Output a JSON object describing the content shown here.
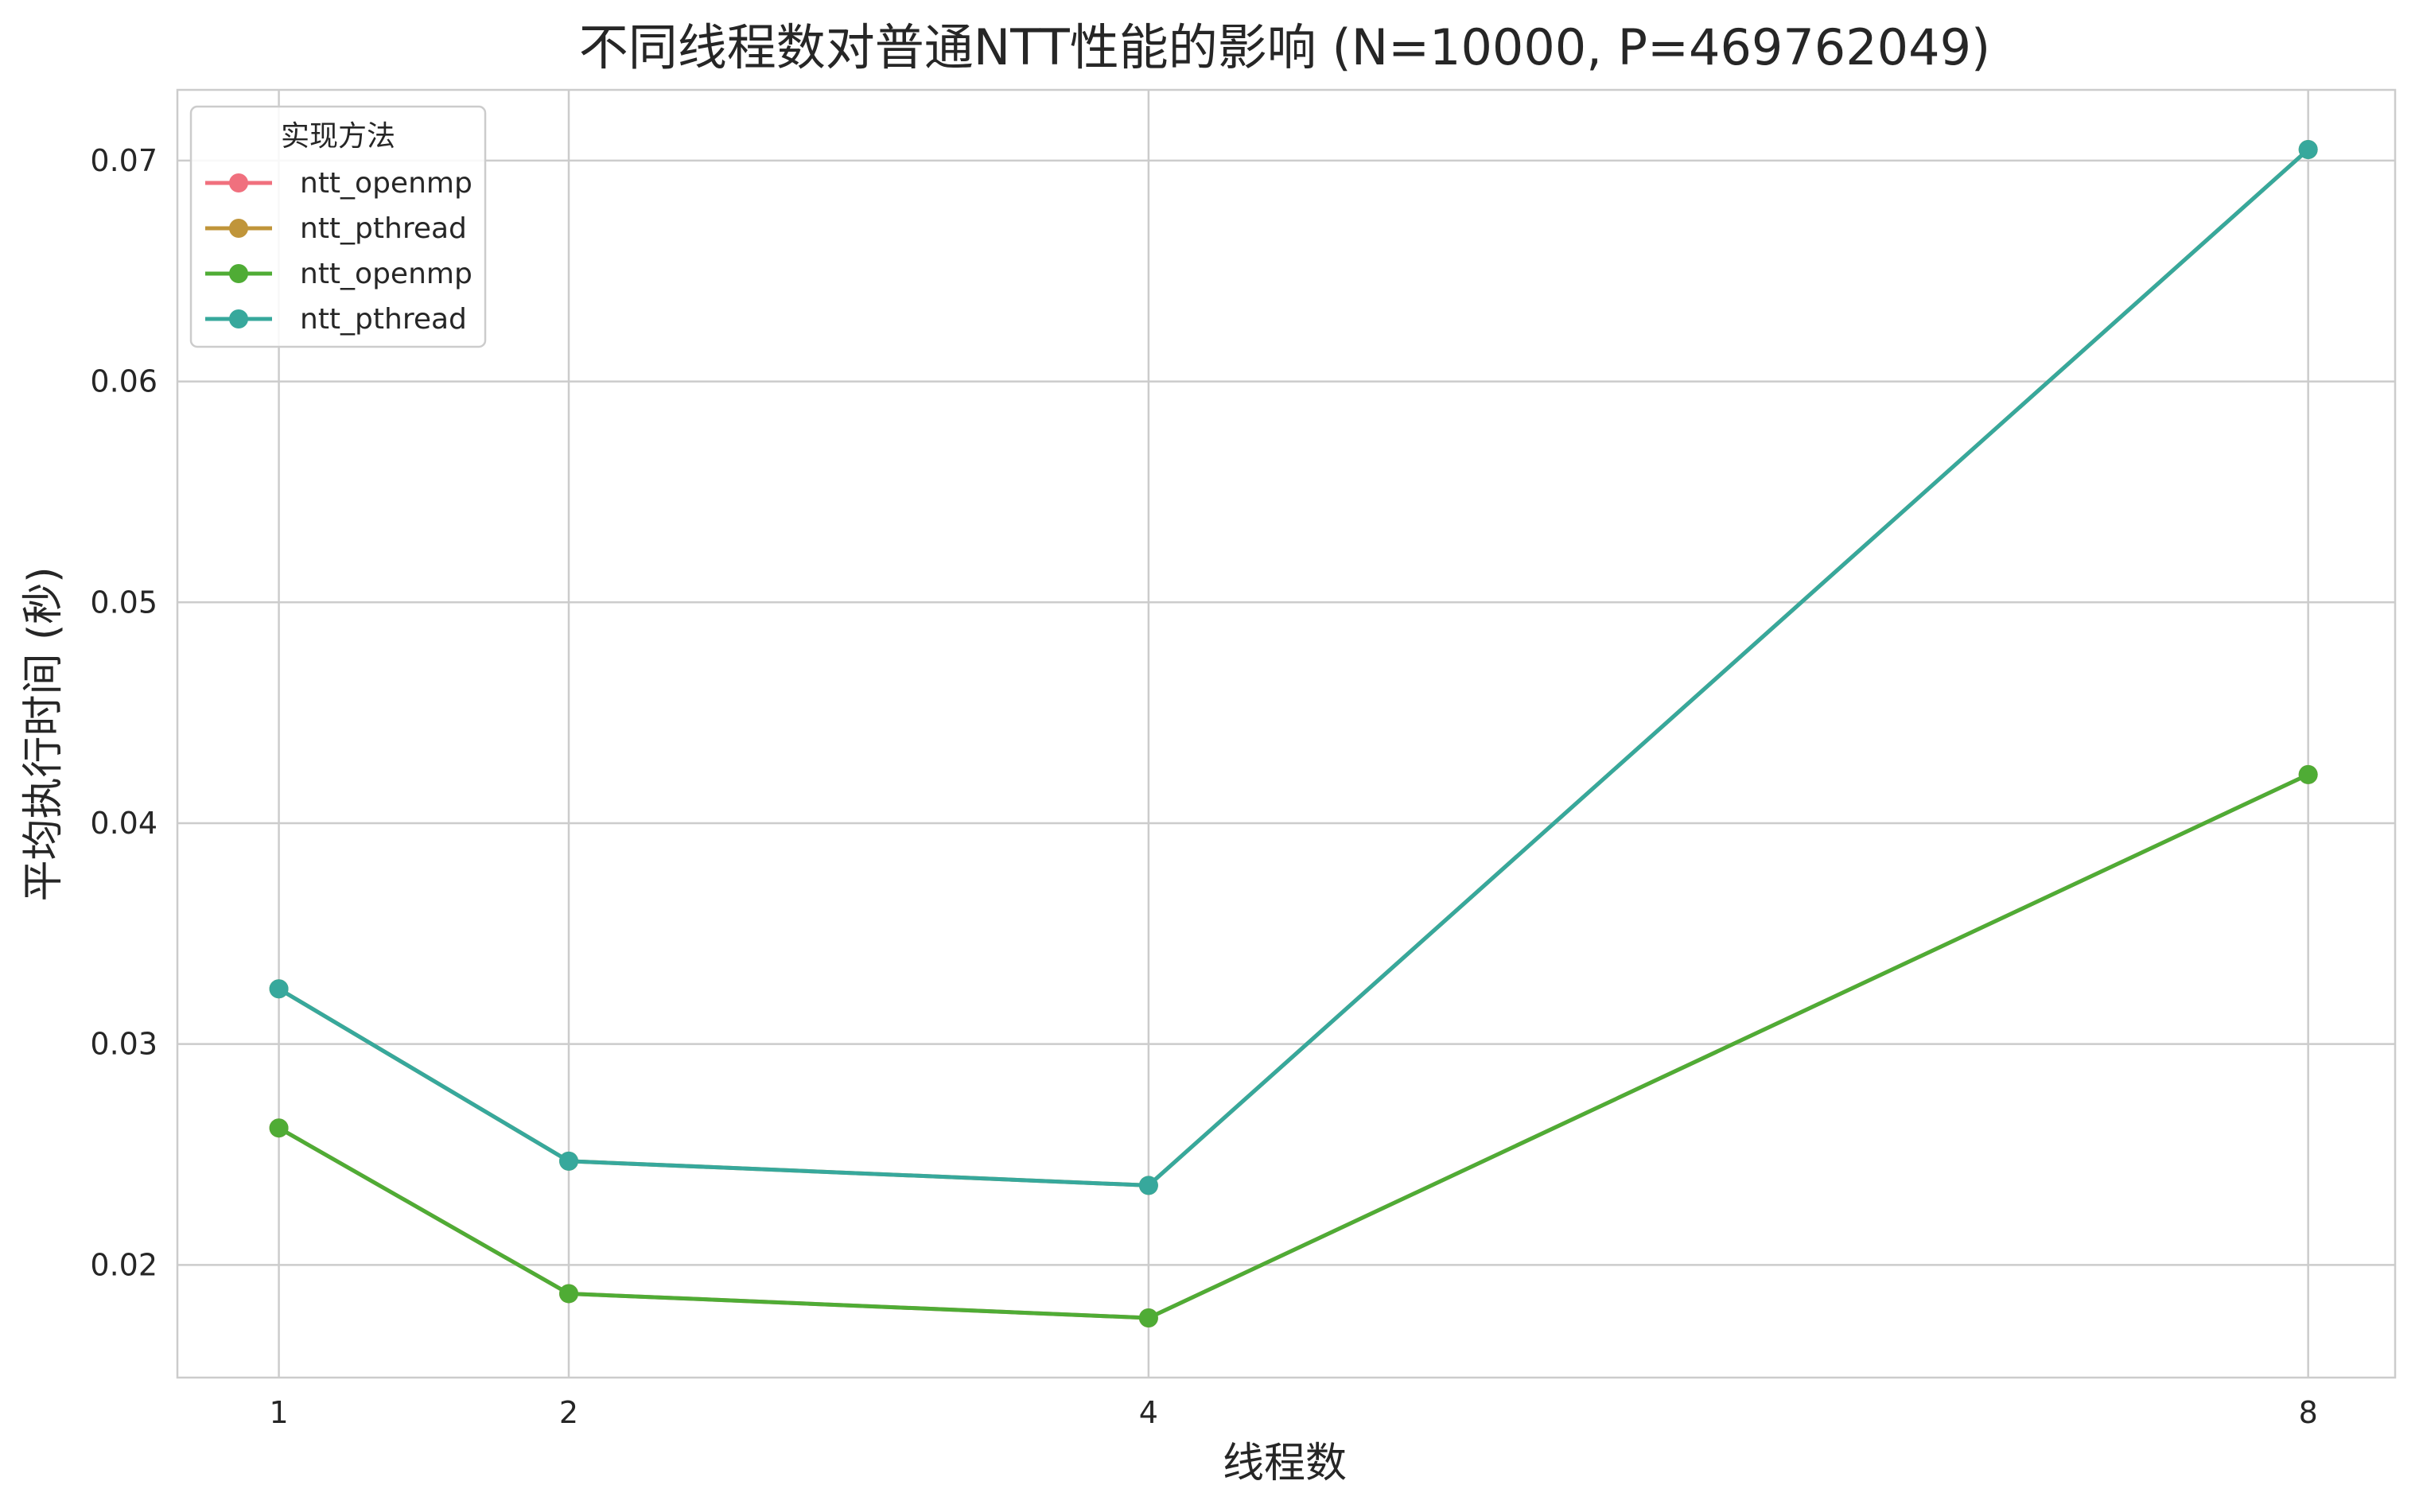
{
  "chart_data": {
    "type": "line",
    "title": "不同线程数对普通NTT性能的影响 (N=10000, P=469762049)",
    "xlabel": "线程数",
    "ylabel": "平均执行时间 (秒)",
    "x": [
      1,
      2,
      4,
      8
    ],
    "x_tick_labels": [
      "1",
      "2",
      "4",
      "8"
    ],
    "xlim": [
      0.65,
      8.3
    ],
    "ylim": [
      0.0149,
      0.0732
    ],
    "y_ticks": [
      0.02,
      0.03,
      0.04,
      0.05,
      0.06,
      0.07
    ],
    "y_tick_labels": [
      "0.02",
      "0.03",
      "0.04",
      "0.05",
      "0.06",
      "0.07"
    ],
    "grid": true,
    "legend": {
      "title": "实现方法",
      "placement": "top-left"
    },
    "series": [
      {
        "name": "ntt_openmp",
        "color": "#f0707e",
        "values": [
          0.0262,
          0.0187,
          0.0176,
          0.0422
        ]
      },
      {
        "name": "ntt_pthread",
        "color": "#c0953a",
        "values": [
          0.0325,
          0.0247,
          0.0236,
          0.0705
        ]
      },
      {
        "name": "ntt_openmp",
        "color": "#4fac35",
        "values": [
          0.0262,
          0.0187,
          0.0176,
          0.0422
        ]
      },
      {
        "name": "ntt_pthread",
        "color": "#37a89c",
        "values": [
          0.0325,
          0.0247,
          0.0236,
          0.0705
        ]
      }
    ]
  }
}
